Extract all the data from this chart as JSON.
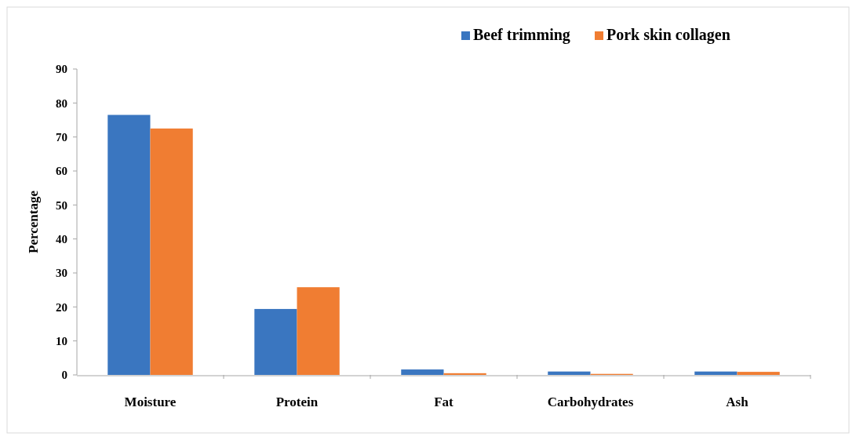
{
  "chart_data": {
    "type": "bar",
    "ylabel": "Percentage",
    "categories": [
      "Moisture",
      "Protein",
      "Fat",
      "Carbohydrates",
      "Ash"
    ],
    "series": [
      {
        "name": "Beef trimming",
        "color": "#3a76c0",
        "values": [
          76.5,
          19.4,
          1.6,
          1.0,
          1.0
        ]
      },
      {
        "name": "Pork skin collagen",
        "color": "#f07d32",
        "values": [
          72.5,
          25.8,
          0.5,
          0.3,
          0.9
        ]
      }
    ],
    "ylim": [
      0,
      90
    ],
    "yticks": [
      0,
      10,
      20,
      30,
      40,
      50,
      60,
      70,
      80,
      90
    ],
    "grid": false,
    "legend": "top right"
  }
}
